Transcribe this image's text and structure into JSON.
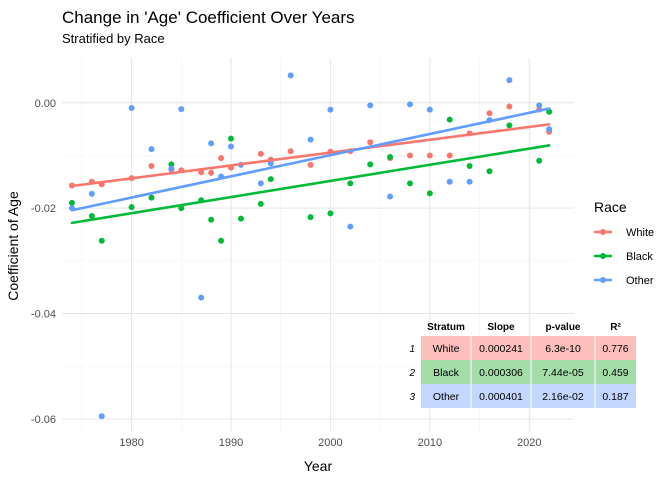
{
  "chart_data": {
    "type": "scatter",
    "title": "Change in 'Age' Coefficient Over Years",
    "subtitle": "Stratified by Race",
    "xlabel": "Year",
    "ylabel": "Coefficient of Age",
    "xlim": [
      1973,
      2024.5
    ],
    "ylim": [
      -0.0625,
      0.0085
    ],
    "x_ticks": [
      1980,
      1990,
      2000,
      2010,
      2020
    ],
    "x_tick_labels": [
      "1980",
      "1990",
      "2000",
      "2010",
      "2020"
    ],
    "y_ticks": [
      -0.06,
      -0.04,
      -0.02,
      0.0
    ],
    "y_tick_labels": [
      "-0.06",
      "-0.04",
      "-0.02",
      "0.00"
    ],
    "grid": true,
    "legend": {
      "title": "Race",
      "position": "right"
    },
    "series": [
      {
        "name": "White",
        "color": "#F8766D",
        "points": [
          [
            1974,
            -0.0157
          ],
          [
            1976,
            -0.015
          ],
          [
            1977,
            -0.0155
          ],
          [
            1980,
            -0.0143
          ],
          [
            1982,
            -0.012
          ],
          [
            1984,
            -0.0127
          ],
          [
            1985,
            -0.0128
          ],
          [
            1987,
            -0.0132
          ],
          [
            1988,
            -0.0133
          ],
          [
            1989,
            -0.0105
          ],
          [
            1990,
            -0.0123
          ],
          [
            1993,
            -0.0097
          ],
          [
            1994,
            -0.0108
          ],
          [
            1996,
            -0.0092
          ],
          [
            1998,
            -0.0118
          ],
          [
            2000,
            -0.0093
          ],
          [
            2002,
            -0.0092
          ],
          [
            2004,
            -0.0075
          ],
          [
            2006,
            -0.0105
          ],
          [
            2008,
            -0.01
          ],
          [
            2010,
            -0.01
          ],
          [
            2012,
            -0.01
          ],
          [
            2014,
            -0.0058
          ],
          [
            2016,
            -0.002
          ],
          [
            2018,
            -0.0007
          ],
          [
            2021,
            -0.0013
          ],
          [
            2022,
            -0.0055
          ]
        ],
        "fit": [
          [
            1974,
            -0.0158
          ],
          [
            2022,
            -0.0041
          ]
        ]
      },
      {
        "name": "Black",
        "color": "#00BA38",
        "points": [
          [
            1974,
            -0.019
          ],
          [
            1976,
            -0.0215
          ],
          [
            1977,
            -0.0262
          ],
          [
            1980,
            -0.0198
          ],
          [
            1982,
            -0.018
          ],
          [
            1984,
            -0.0117
          ],
          [
            1985,
            -0.02
          ],
          [
            1987,
            -0.0185
          ],
          [
            1988,
            -0.0222
          ],
          [
            1989,
            -0.0262
          ],
          [
            1990,
            -0.0068
          ],
          [
            1991,
            -0.022
          ],
          [
            1993,
            -0.0192
          ],
          [
            1994,
            -0.0145
          ],
          [
            1998,
            -0.0217
          ],
          [
            2000,
            -0.021
          ],
          [
            2002,
            -0.0153
          ],
          [
            2004,
            -0.0117
          ],
          [
            2006,
            -0.0103
          ],
          [
            2008,
            -0.0153
          ],
          [
            2010,
            -0.0172
          ],
          [
            2012,
            -0.0032
          ],
          [
            2014,
            -0.012
          ],
          [
            2016,
            -0.013
          ],
          [
            2018,
            -0.0043
          ],
          [
            2021,
            -0.011
          ],
          [
            2022,
            -0.0017
          ]
        ],
        "fit": [
          [
            1974,
            -0.0228
          ],
          [
            2022,
            -0.0081
          ]
        ]
      },
      {
        "name": "Other",
        "color": "#619CFF",
        "points": [
          [
            1974,
            -0.02
          ],
          [
            1976,
            -0.0173
          ],
          [
            1977,
            -0.0595
          ],
          [
            1980,
            -0.001
          ],
          [
            1982,
            -0.0088
          ],
          [
            1984,
            -0.0125
          ],
          [
            1985,
            -0.0012
          ],
          [
            1987,
            -0.037
          ],
          [
            1988,
            -0.0077
          ],
          [
            1989,
            -0.014
          ],
          [
            1990,
            -0.0083
          ],
          [
            1991,
            -0.0118
          ],
          [
            1993,
            -0.0153
          ],
          [
            1994,
            -0.0115
          ],
          [
            1996,
            0.0052
          ],
          [
            1998,
            -0.007
          ],
          [
            2000,
            -0.0013
          ],
          [
            2002,
            -0.0235
          ],
          [
            2004,
            -0.0005
          ],
          [
            2006,
            -0.0178
          ],
          [
            2008,
            -0.0003
          ],
          [
            2010,
            -0.0013
          ],
          [
            2012,
            -0.015
          ],
          [
            2014,
            -0.015
          ],
          [
            2016,
            -0.0033
          ],
          [
            2018,
            0.0043
          ],
          [
            2021,
            -0.0005
          ],
          [
            2022,
            -0.005
          ]
        ],
        "fit": [
          [
            1974,
            -0.0204
          ],
          [
            2022,
            -0.0011
          ]
        ]
      }
    ],
    "table": {
      "headers": [
        "Stratum",
        "Slope",
        "p-value",
        "R²"
      ],
      "rows": [
        {
          "index": "1",
          "stratum": "White",
          "slope": "0.000241",
          "p_value": "6.3e-10",
          "r2": "0.776",
          "fill": "#FDBFBB"
        },
        {
          "index": "2",
          "stratum": "Black",
          "slope": "0.000306",
          "p_value": "7.44e-05",
          "r2": "0.459",
          "fill": "#A3DDA8"
        },
        {
          "index": "3",
          "stratum": "Other",
          "slope": "0.000401",
          "p_value": "2.16e-02",
          "r2": "0.187",
          "fill": "#C3D7FE"
        }
      ]
    }
  }
}
